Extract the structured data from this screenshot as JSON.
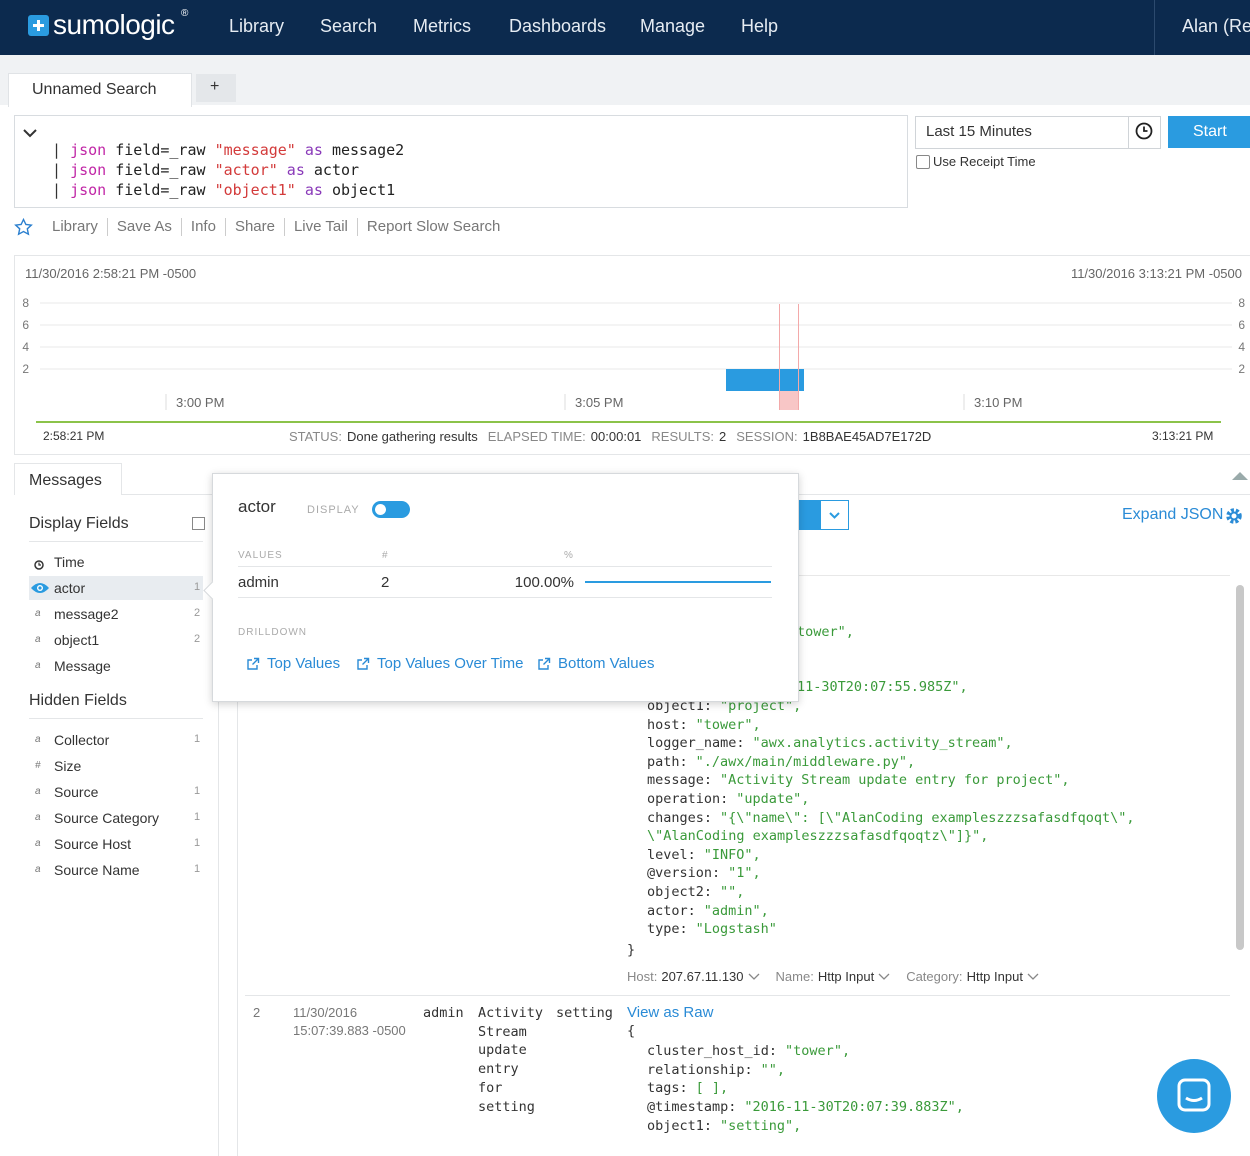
{
  "nav": {
    "logo": "sumologic",
    "trademark": "®",
    "items": [
      "Library",
      "Search",
      "Metrics",
      "Dashboards",
      "Manage",
      "Help"
    ],
    "user": "Alan (Re"
  },
  "tabs": [
    "Unnamed Search",
    "+"
  ],
  "query": [
    [
      "| ",
      "json",
      " field=_raw ",
      "\"message\"",
      " as ",
      "message2"
    ],
    [
      "| ",
      "json",
      " field=_raw ",
      "\"actor\"",
      " as ",
      "actor"
    ],
    [
      "| ",
      "json",
      " field=_raw ",
      "\"object1\"",
      " as ",
      "object1"
    ]
  ],
  "time_range": "Last 15 Minutes",
  "start_button": "Start",
  "receipt_time": "Use Receipt Time",
  "toolbar": [
    "Library",
    "Save As",
    "Info",
    "Share",
    "Live Tail",
    "Report Slow Search"
  ],
  "histogram": {
    "start": "11/30/2016 2:58:21 PM -0500",
    "end": "11/30/2016 3:13:21 PM -0500",
    "ylim": [
      0,
      8
    ],
    "yticks": [
      8,
      6,
      4,
      2
    ],
    "xticks": [
      "3:00 PM",
      "3:05 PM",
      "3:10 PM"
    ],
    "values": [
      2
    ],
    "range_start": "2:58:21 PM",
    "range_end": "3:13:21 PM"
  },
  "status": [
    {
      "label": "STATUS:",
      "value": "Done gathering results"
    },
    {
      "label": "ELAPSED TIME:",
      "value": "00:00:01"
    },
    {
      "label": "RESULTS:",
      "value": "2"
    },
    {
      "label": "SESSION:",
      "value": "1B8BAE45AD7E172D"
    }
  ],
  "messages_tab": "Messages",
  "display_fields_title": "Display Fields",
  "display_fields": [
    {
      "name": "Time"
    },
    {
      "name": "actor",
      "count": 1
    },
    {
      "name": "message2",
      "icon": "a",
      "count": 2
    },
    {
      "name": "object1",
      "icon": "a",
      "count": 2
    },
    {
      "name": "Message",
      "icon": "a"
    }
  ],
  "hidden_fields_title": "Hidden Fields",
  "hidden_fields": [
    {
      "name": "Collector",
      "icon": "a",
      "count": 1
    },
    {
      "name": "Size",
      "icon": "#"
    },
    {
      "name": "Source",
      "icon": "a",
      "count": 1
    },
    {
      "name": "Source Category",
      "icon": "a",
      "count": 1
    },
    {
      "name": "Source Host",
      "icon": "a",
      "count": 1
    },
    {
      "name": "Source Name",
      "icon": "a",
      "count": 1
    }
  ],
  "popup": {
    "field": "actor",
    "display": "DISPLAY",
    "headers": [
      "VALUES",
      "#",
      "%"
    ],
    "rows": [
      {
        "value": "admin",
        "count": "2",
        "percent": 100,
        "percent_label": "100.00%"
      }
    ],
    "drilldown": "DRILLDOWN",
    "links": [
      "Top Values",
      "Top Values Over Time",
      "Bottom Values"
    ]
  },
  "expand_json": "Expand JSON",
  "fragments": [
    "tower\",",
    "11-30T20:07:55.985Z\","
  ],
  "message1": {
    "lines": [
      {
        "key": "object1:",
        "value": "\"project\","
      },
      {
        "key": "host:",
        "value": "\"tower\","
      },
      {
        "key": "logger_name:",
        "value": "\"awx.analytics.activity_stream\","
      },
      {
        "key": "path:",
        "value": "\"./awx/main/middleware.py\","
      },
      {
        "key": "message:",
        "value": "\"Activity Stream update entry for project\","
      },
      {
        "key": "operation:",
        "value": "\"update\","
      },
      {
        "key": "changes:",
        "value": "\"{\\\"name\\\": [\\\"AlanCoding exampleszzzsafasdfqoqt\\\","
      },
      {
        "value": "\\\"AlanCoding exampleszzzsafasdfqoqtz\\\"]}\","
      },
      {
        "key": "level:",
        "value": "\"INFO\","
      },
      {
        "key": "@version:",
        "value": "\"1\","
      },
      {
        "key": "object2:",
        "value": "\"\","
      },
      {
        "key": "actor:",
        "value": "\"admin\","
      },
      {
        "key": "type:",
        "value": "\"Logstash\""
      }
    ],
    "close": "}",
    "footer": [
      {
        "label": "Host:",
        "value": "207.67.11.130"
      },
      {
        "label": "Name:",
        "value": "Http Input"
      },
      {
        "label": "Category:",
        "value": "Http Input"
      }
    ]
  },
  "message2": {
    "index": "2",
    "date": "11/30/2016",
    "time": "15:07:39.883 -0500",
    "actor": "admin",
    "message": "Activity Stream update entry for setting",
    "operation": "setting",
    "view_raw": "View as Raw",
    "open": "{",
    "lines": [
      {
        "key": "cluster_host_id:",
        "value": "\"tower\","
      },
      {
        "key": "relationship:",
        "value": "\"\","
      },
      {
        "key": "tags:",
        "value": "[ ],"
      },
      {
        "key": "@timestamp:",
        "value": "\"2016-11-30T20:07:39.883Z\","
      },
      {
        "key": "object1:",
        "value": "\"setting\","
      }
    ]
  }
}
